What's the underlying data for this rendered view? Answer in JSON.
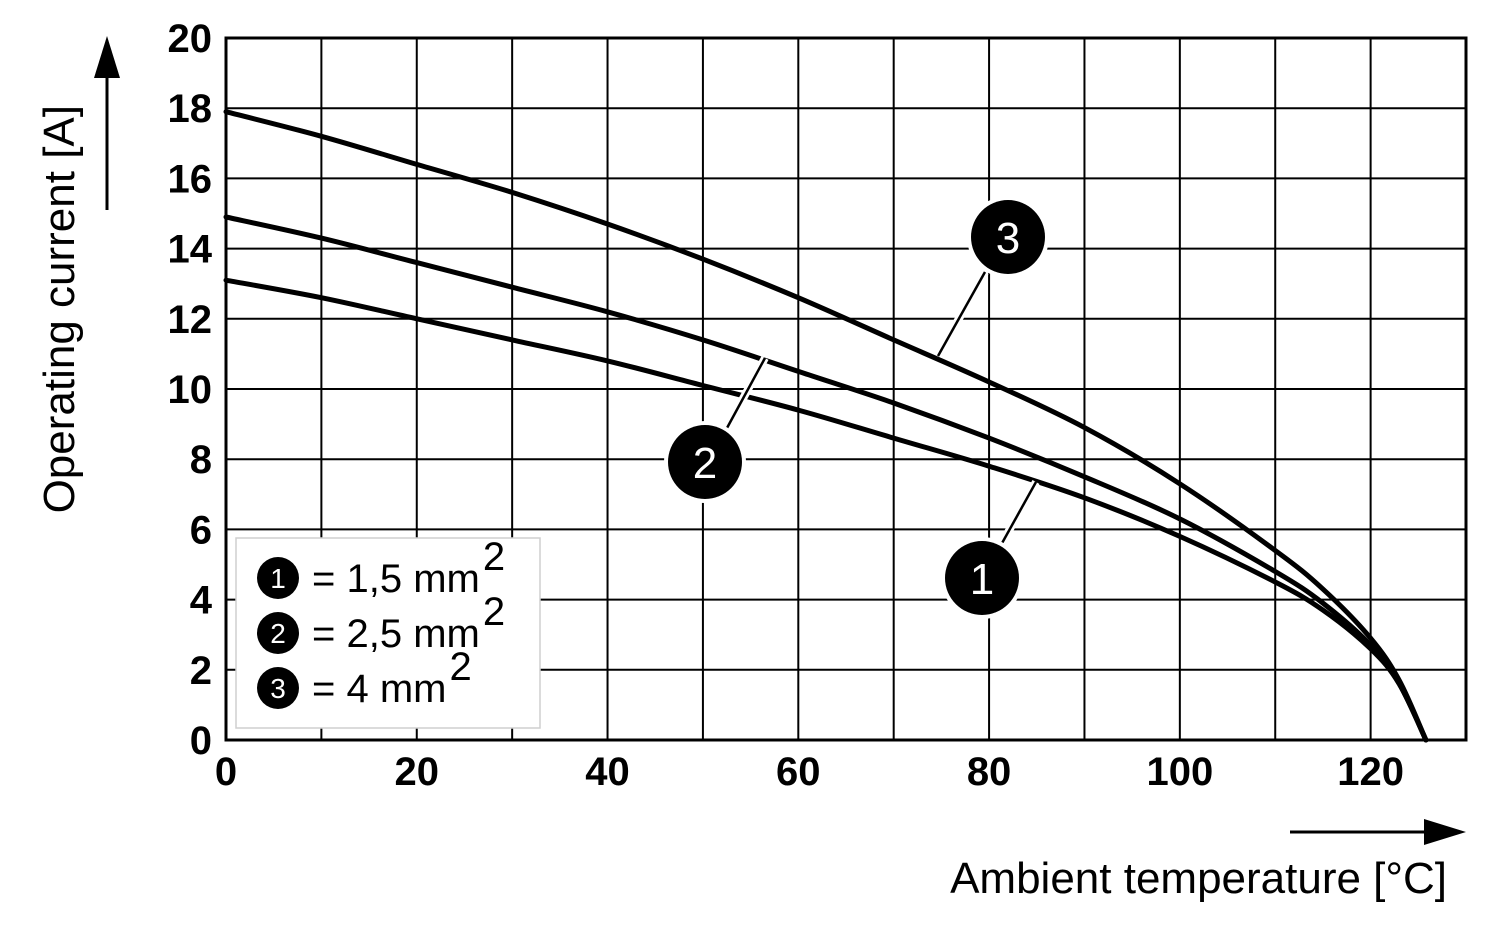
{
  "chart_data": {
    "type": "line",
    "xlabel": "Ambient temperature [°C]",
    "ylabel": "Operating current [A]",
    "xlim": [
      0,
      130
    ],
    "ylim": [
      0,
      20
    ],
    "x_ticks": [
      "0",
      "20",
      "40",
      "60",
      "80",
      "100",
      "120"
    ],
    "y_ticks": [
      "0",
      "2",
      "4",
      "6",
      "8",
      "10",
      "12",
      "14",
      "16",
      "18",
      "20"
    ],
    "grid": true,
    "legend_position": "bottom-left",
    "series": [
      {
        "id": "1",
        "legend": "= 1,5 mm",
        "legend_sup": "2",
        "x": [
          0,
          10,
          20,
          30,
          40,
          50,
          60,
          70,
          80,
          90,
          100,
          110,
          115,
          120,
          123,
          125.8
        ],
        "values": [
          13.1,
          12.6,
          12.0,
          11.4,
          10.8,
          10.1,
          9.4,
          8.6,
          7.8,
          6.9,
          5.8,
          4.5,
          3.7,
          2.6,
          1.6,
          0
        ]
      },
      {
        "id": "2",
        "legend": "= 2,5 mm",
        "legend_sup": "2",
        "x": [
          0,
          10,
          20,
          30,
          40,
          50,
          60,
          70,
          80,
          90,
          100,
          110,
          115,
          120,
          123,
          125.8
        ],
        "values": [
          14.9,
          14.3,
          13.6,
          12.9,
          12.2,
          11.4,
          10.5,
          9.6,
          8.6,
          7.5,
          6.3,
          4.8,
          3.9,
          2.7,
          1.6,
          0
        ]
      },
      {
        "id": "3",
        "legend": "= 4 mm",
        "legend_sup": "2",
        "x": [
          0,
          10,
          20,
          30,
          40,
          50,
          60,
          70,
          80,
          90,
          100,
          110,
          115,
          120,
          123,
          125.8
        ],
        "values": [
          17.9,
          17.2,
          16.4,
          15.6,
          14.7,
          13.7,
          12.6,
          11.4,
          10.2,
          8.9,
          7.3,
          5.4,
          4.3,
          2.9,
          1.7,
          0
        ]
      }
    ],
    "callouts": [
      {
        "label": "1",
        "series": "1"
      },
      {
        "label": "2",
        "series": "2"
      },
      {
        "label": "3",
        "series": "3"
      }
    ]
  }
}
